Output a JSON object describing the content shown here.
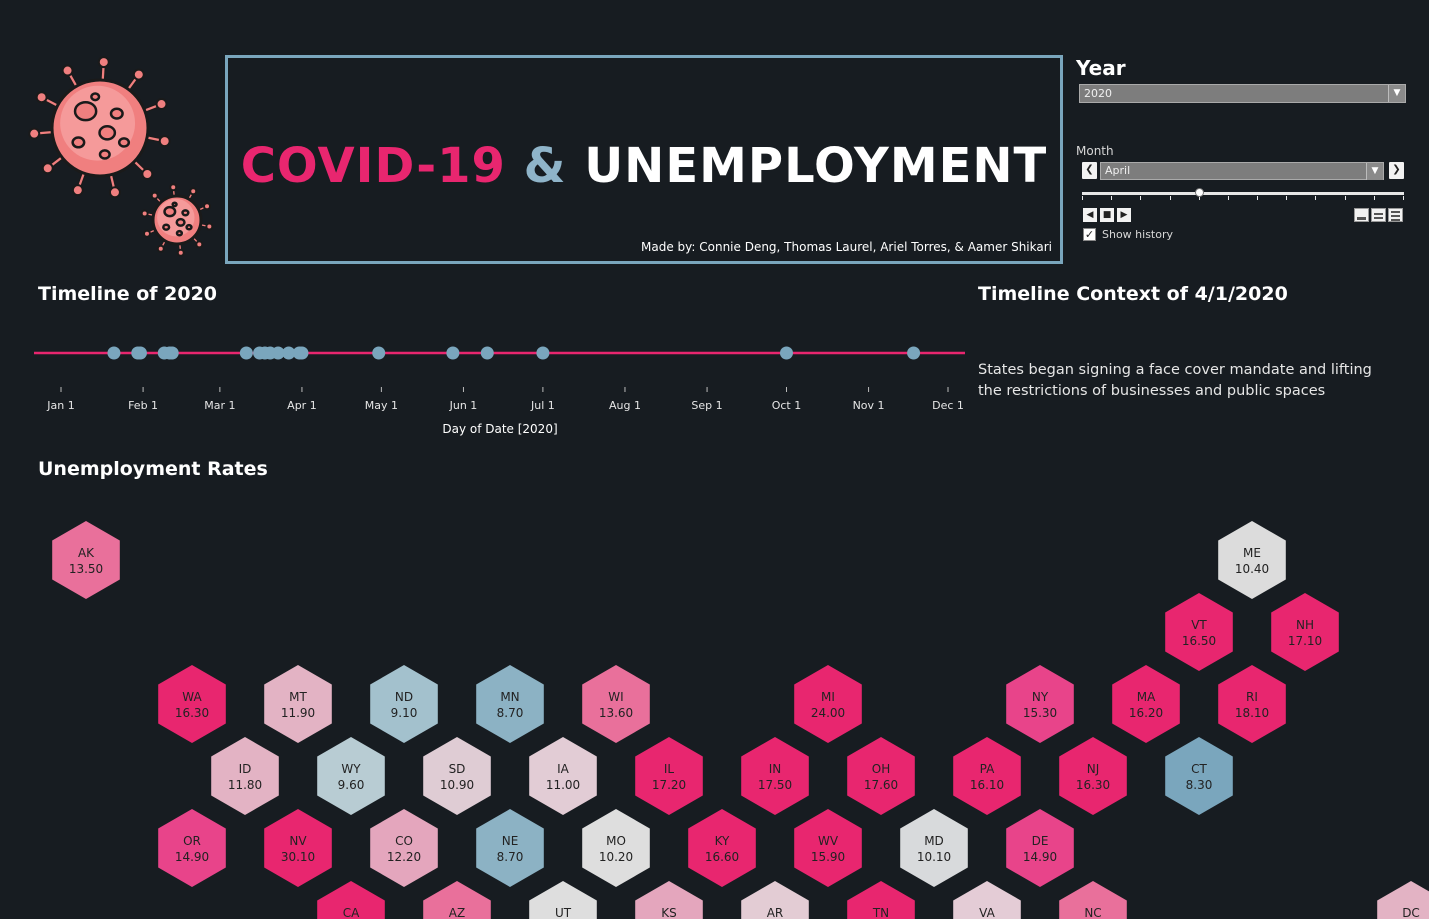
{
  "header": {
    "title_covid": "COVID-19",
    "title_amp": "&",
    "title_unemployment": "UNEMPLOYMENT",
    "credits": "Made by: Connie Deng, Thomas Laurel, Ariel Torres, & Aamer Shikari"
  },
  "controls": {
    "year_heading": "Year",
    "year_value": "2020",
    "month_label": "Month",
    "month_value": "April",
    "month_slider_position": 0.364,
    "show_history_label": "Show history",
    "show_history_checked": true
  },
  "timeline": {
    "heading": "Timeline of 2020",
    "axis_title": "Day of Date [2020]",
    "tick_labels": [
      "Jan 1",
      "Feb 1",
      "Mar 1",
      "Apr 1",
      "May 1",
      "Jun 1",
      "Jul 1",
      "Aug 1",
      "Sep 1",
      "Oct 1",
      "Nov 1",
      "Dec 1"
    ]
  },
  "context": {
    "heading": "Timeline Context of 4/1/2020",
    "text": "States began signing a face cover mandate and lifting the restrictions of businesses and public spaces"
  },
  "map": {
    "heading": "Unemployment Rates"
  },
  "chart_data": {
    "type": "scatter",
    "x_dates_2020": [
      "2020-01-21",
      "2020-01-30",
      "2020-01-31",
      "2020-02-09",
      "2020-02-11",
      "2020-02-12",
      "2020-03-11",
      "2020-03-16",
      "2020-03-18",
      "2020-03-20",
      "2020-03-23",
      "2020-03-27",
      "2020-03-31",
      "2020-04-01",
      "2020-04-30",
      "2020-05-28",
      "2020-06-10",
      "2020-07-01",
      "2020-10-01",
      "2020-11-18"
    ],
    "xlabel": "Day of Date [2020]",
    "line_color": "#e8266f",
    "point_color": "#7aa6bd"
  },
  "hexmap": {
    "color_low": "#7aa6bd",
    "color_mid": "#d6d6d6",
    "color_high": "#e8266f",
    "states": [
      {
        "abbr": "AK",
        "rate": "13.50",
        "col": 0,
        "row": 0,
        "color": "#e9709b"
      },
      {
        "abbr": "ME",
        "rate": "10.40",
        "col": 11,
        "row": 0,
        "color": "#dcdcdc"
      },
      {
        "abbr": "VT",
        "rate": "16.50",
        "col": 10,
        "row": 1,
        "color": "#e8266f"
      },
      {
        "abbr": "NH",
        "rate": "17.10",
        "col": 11,
        "row": 1,
        "color": "#e8266f"
      },
      {
        "abbr": "WA",
        "rate": "16.30",
        "col": 1,
        "row": 2,
        "color": "#e8266f"
      },
      {
        "abbr": "MT",
        "rate": "11.90",
        "col": 2,
        "row": 2,
        "color": "#e3b3c4"
      },
      {
        "abbr": "ND",
        "rate": "9.10",
        "col": 3,
        "row": 2,
        "color": "#a3c1cd"
      },
      {
        "abbr": "MN",
        "rate": "8.70",
        "col": 4,
        "row": 2,
        "color": "#8cb2c4"
      },
      {
        "abbr": "WI",
        "rate": "13.60",
        "col": 5,
        "row": 2,
        "color": "#e9709b"
      },
      {
        "abbr": "MI",
        "rate": "24.00",
        "col": 7,
        "row": 2,
        "color": "#e8266f"
      },
      {
        "abbr": "NY",
        "rate": "15.30",
        "col": 9,
        "row": 2,
        "color": "#e8448a"
      },
      {
        "abbr": "MA",
        "rate": "16.20",
        "col": 10,
        "row": 2,
        "color": "#e8266f"
      },
      {
        "abbr": "RI",
        "rate": "18.10",
        "col": 11,
        "row": 2,
        "color": "#e8266f"
      },
      {
        "abbr": "ID",
        "rate": "11.80",
        "col": 1,
        "row": 3,
        "color": "#e3b3c4"
      },
      {
        "abbr": "WY",
        "rate": "9.60",
        "col": 2,
        "row": 3,
        "color": "#b8ccd3"
      },
      {
        "abbr": "SD",
        "rate": "10.90",
        "col": 3,
        "row": 3,
        "color": "#dfccd4"
      },
      {
        "abbr": "IA",
        "rate": "11.00",
        "col": 4,
        "row": 3,
        "color": "#e2ccd5"
      },
      {
        "abbr": "IL",
        "rate": "17.20",
        "col": 5,
        "row": 3,
        "color": "#e8266f"
      },
      {
        "abbr": "IN",
        "rate": "17.50",
        "col": 6,
        "row": 3,
        "color": "#e8266f"
      },
      {
        "abbr": "OH",
        "rate": "17.60",
        "col": 7,
        "row": 3,
        "color": "#e8266f"
      },
      {
        "abbr": "PA",
        "rate": "16.10",
        "col": 8,
        "row": 3,
        "color": "#e8266f"
      },
      {
        "abbr": "NJ",
        "rate": "16.30",
        "col": 9,
        "row": 3,
        "color": "#e8266f"
      },
      {
        "abbr": "CT",
        "rate": "8.30",
        "col": 10,
        "row": 3,
        "color": "#7aa6bd"
      },
      {
        "abbr": "OR",
        "rate": "14.90",
        "col": 1,
        "row": 4,
        "color": "#e8448a"
      },
      {
        "abbr": "NV",
        "rate": "30.10",
        "col": 2,
        "row": 4,
        "color": "#e8266f"
      },
      {
        "abbr": "CO",
        "rate": "12.20",
        "col": 3,
        "row": 4,
        "color": "#e4a6bd"
      },
      {
        "abbr": "NE",
        "rate": "8.70",
        "col": 4,
        "row": 4,
        "color": "#8cb2c4"
      },
      {
        "abbr": "MO",
        "rate": "10.20",
        "col": 5,
        "row": 4,
        "color": "#dedede"
      },
      {
        "abbr": "KY",
        "rate": "16.60",
        "col": 6,
        "row": 4,
        "color": "#e8266f"
      },
      {
        "abbr": "WV",
        "rate": "15.90",
        "col": 7,
        "row": 4,
        "color": "#e8266f"
      },
      {
        "abbr": "MD",
        "rate": "10.10",
        "col": 8,
        "row": 4,
        "color": "#d8dadc"
      },
      {
        "abbr": "DE",
        "rate": "14.90",
        "col": 9,
        "row": 4,
        "color": "#e8448a"
      },
      {
        "abbr": "CA",
        "rate": "",
        "col": 2,
        "row": 5,
        "color": "#e8266f"
      },
      {
        "abbr": "AZ",
        "rate": "",
        "col": 3,
        "row": 5,
        "color": "#e9709b"
      },
      {
        "abbr": "UT",
        "rate": "",
        "col": 4,
        "row": 5,
        "color": "#dedede"
      },
      {
        "abbr": "KS",
        "rate": "",
        "col": 5,
        "row": 5,
        "color": "#e4a6bd"
      },
      {
        "abbr": "AR",
        "rate": "",
        "col": 6,
        "row": 5,
        "color": "#e3ccd4"
      },
      {
        "abbr": "TN",
        "rate": "",
        "col": 7,
        "row": 5,
        "color": "#e8266f"
      },
      {
        "abbr": "VA",
        "rate": "",
        "col": 8,
        "row": 5,
        "color": "#e4ccd6"
      },
      {
        "abbr": "NC",
        "rate": "",
        "col": 9,
        "row": 5,
        "color": "#e9709b"
      },
      {
        "abbr": "DC",
        "rate": "",
        "col": 12,
        "row": 5,
        "color": "#e3b3c4"
      }
    ]
  }
}
